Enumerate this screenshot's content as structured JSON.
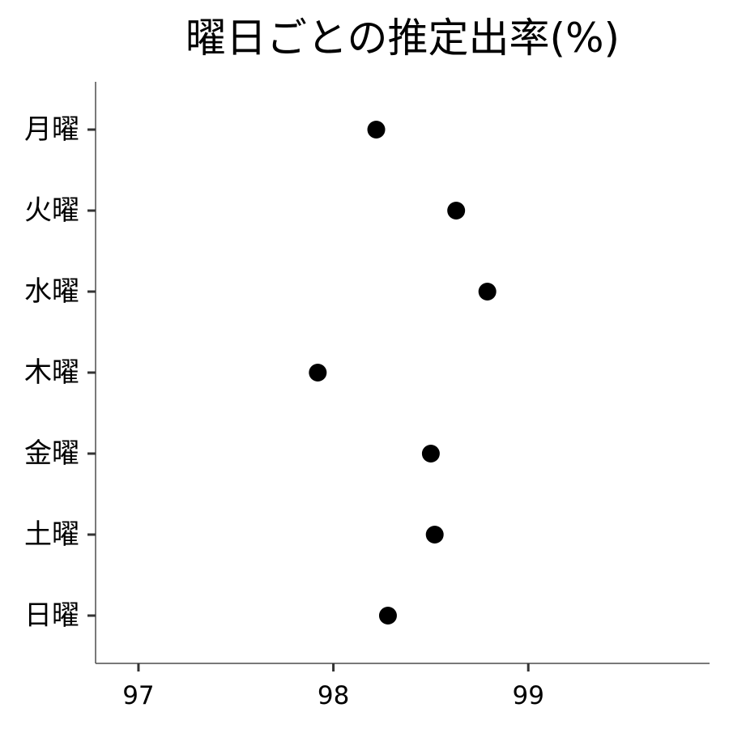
{
  "chart_data": {
    "type": "scatter",
    "title": "曜日ごとの推定出率(%)",
    "xlabel": "",
    "ylabel": "",
    "categories": [
      "月曜",
      "火曜",
      "水曜",
      "木曜",
      "金曜",
      "土曜",
      "日曜"
    ],
    "values": [
      98.22,
      98.63,
      98.79,
      97.92,
      98.5,
      98.52,
      98.28
    ],
    "xlim": [
      96.78,
      99.93
    ],
    "xticks": [
      97,
      98,
      99
    ],
    "grid": false,
    "legend": "none",
    "colors": {
      "point": "#000000",
      "axis": "#4d4d4d",
      "tick": "#333333",
      "background": "#ffffff"
    }
  }
}
